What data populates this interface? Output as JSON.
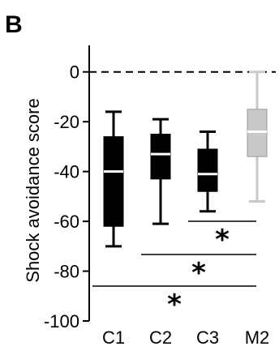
{
  "panel_label": "B",
  "chart_data": {
    "type": "box",
    "ylabel": "Shock avoidance score",
    "xlabel": "",
    "ylim": [
      -100,
      10
    ],
    "yticks": [
      0,
      -20,
      -40,
      -60,
      -80,
      -100
    ],
    "reference_line": 0,
    "categories": [
      "C1",
      "C2",
      "C3",
      "M2"
    ],
    "boxes": [
      {
        "category": "C1",
        "whisker_low": -70,
        "q1": -62,
        "median": -40,
        "q3": -26,
        "whisker_high": -16,
        "color": "#000000"
      },
      {
        "category": "C2",
        "whisker_low": -61,
        "q1": -43,
        "median": -33,
        "q3": -25,
        "whisker_high": -19,
        "color": "#000000"
      },
      {
        "category": "C3",
        "whisker_low": -56,
        "q1": -48,
        "median": -41,
        "q3": -31,
        "whisker_high": -24,
        "color": "#000000"
      },
      {
        "category": "M2",
        "whisker_low": -52,
        "q1": -34,
        "median": -24,
        "q3": -15,
        "whisker_high": 0,
        "color": "#c8c8c8"
      }
    ],
    "significance": [
      {
        "from": "C3",
        "to": "M2",
        "label": "*"
      },
      {
        "from": "C2",
        "to": "M2",
        "label": "*"
      },
      {
        "from": "C1",
        "to": "M2",
        "label": "*"
      }
    ]
  }
}
